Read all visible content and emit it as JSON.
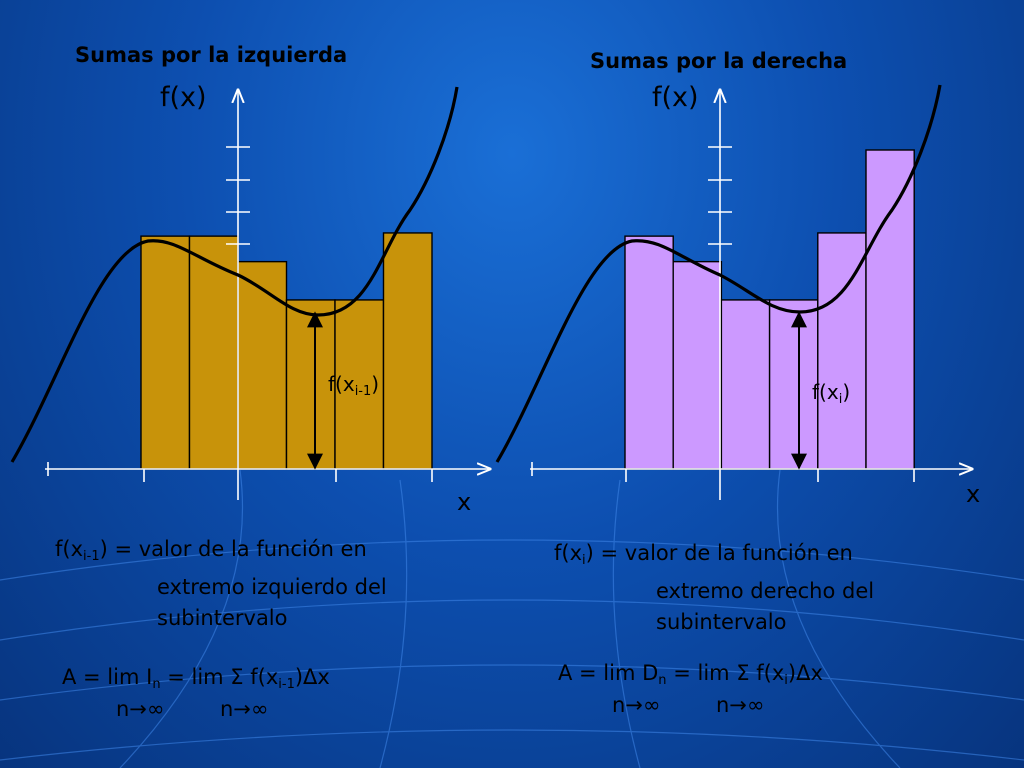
{
  "left": {
    "title": "Sumas por la izquierda",
    "axis_y_label": "f(x)",
    "axis_x_label": "x",
    "value_label": {
      "base": "f(x",
      "sub": "i-1",
      "close": ")"
    },
    "definition": {
      "lead_base": "f(x",
      "lead_sub": "i-1",
      "lead_rest": ") = valor de la función en",
      "line2": "extremo izquierdo del",
      "line3": "subintervalo"
    },
    "formula": {
      "part1": "A = lim I",
      "sub1": "n",
      "part2": " = lim Σ f(x",
      "sub2": "i-1",
      "part3": ")Δx",
      "limit1": "n→∞",
      "limit2": "n→∞"
    },
    "rectangle_color": "#c8930a",
    "rectangle_heights": [
      0.73,
      0.73,
      0.65,
      0.53,
      0.53,
      0.74
    ]
  },
  "right": {
    "title": "Sumas por la derecha",
    "axis_y_label": "f(x)",
    "axis_x_label": "x",
    "value_label": {
      "base": "f(x",
      "sub": "i",
      "close": ")"
    },
    "definition": {
      "lead_base": "f(x",
      "lead_sub": "i",
      "lead_rest": ") = valor de la función en",
      "line2": "extremo derecho del",
      "line3": "subintervalo"
    },
    "formula": {
      "part1": "A = lim D",
      "sub1": "n",
      "part2": " = lim Σ f(x",
      "sub2": "i",
      "part3": ")Δx",
      "limit1": "n→∞",
      "limit2": "n→∞"
    },
    "rectangle_color": "#cc99ff",
    "rectangle_heights": [
      0.73,
      0.65,
      0.53,
      0.53,
      0.74,
      1.0
    ]
  }
}
